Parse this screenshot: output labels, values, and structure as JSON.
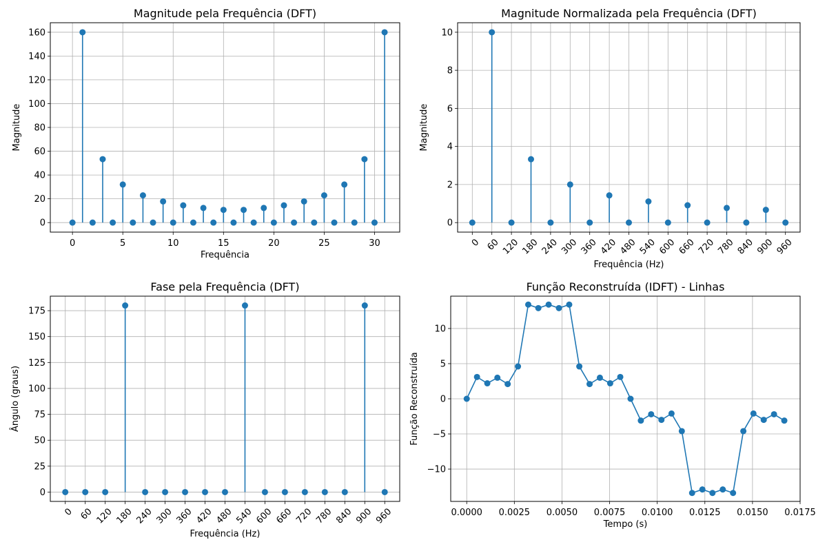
{
  "colors": {
    "series": "#1f77b4",
    "grid": "#b0b0b0",
    "axis": "#000000"
  },
  "chart_data": [
    {
      "type": "stem",
      "title": "Magnitude pela Frequência (DFT)",
      "xlabel": "Frequência",
      "ylabel": "Magnitude",
      "xlim": [
        -2.2,
        32.5
      ],
      "ylim": [
        -8,
        168
      ],
      "xticks": [
        0,
        5,
        10,
        15,
        20,
        25,
        30
      ],
      "xtick_labels": [
        "0",
        "5",
        "10",
        "15",
        "20",
        "25",
        "30"
      ],
      "yticks": [
        0,
        20,
        40,
        60,
        80,
        100,
        120,
        140,
        160
      ],
      "ytick_labels": [
        "0",
        "20",
        "40",
        "60",
        "80",
        "100",
        "120",
        "140",
        "160"
      ],
      "xtick_rotation": 0,
      "grid": true,
      "x": [
        0,
        1,
        2,
        3,
        4,
        5,
        6,
        7,
        8,
        9,
        10,
        11,
        12,
        13,
        14,
        15,
        16,
        17,
        18,
        19,
        20,
        21,
        22,
        23,
        24,
        25,
        26,
        27,
        28,
        29,
        30,
        31
      ],
      "values": [
        0,
        160,
        0,
        53.3,
        0,
        32,
        0,
        22.9,
        0,
        17.8,
        0,
        14.5,
        0,
        12.3,
        0,
        10.7,
        0,
        10.7,
        0,
        12.3,
        0,
        14.5,
        0,
        17.8,
        0,
        22.9,
        0,
        32,
        0,
        53.3,
        0,
        160
      ]
    },
    {
      "type": "stem",
      "title": "Magnitude Normalizada pela Frequência (DFT)",
      "xlabel": "Frequência (Hz)",
      "ylabel": "Magnitude",
      "xlim": [
        -45,
        1005
      ],
      "ylim": [
        -0.5,
        10.5
      ],
      "xticks": [
        0,
        60,
        120,
        180,
        240,
        300,
        360,
        420,
        480,
        540,
        600,
        660,
        720,
        780,
        840,
        900,
        960
      ],
      "xtick_labels": [
        "0",
        "60",
        "120",
        "180",
        "240",
        "300",
        "360",
        "420",
        "480",
        "540",
        "600",
        "660",
        "720",
        "780",
        "840",
        "900",
        "960"
      ],
      "yticks": [
        0,
        2,
        4,
        6,
        8,
        10
      ],
      "ytick_labels": [
        "0",
        "2",
        "4",
        "6",
        "8",
        "10"
      ],
      "xtick_rotation": 45,
      "grid": true,
      "x": [
        0,
        60,
        120,
        180,
        240,
        300,
        360,
        420,
        480,
        540,
        600,
        660,
        720,
        780,
        840,
        900,
        960
      ],
      "values": [
        0,
        10,
        0,
        3.33,
        0,
        2,
        0,
        1.43,
        0,
        1.11,
        0,
        0.91,
        0,
        0.77,
        0,
        0.67,
        0
      ]
    },
    {
      "type": "stem",
      "title": "Fase pela Frequência (DFT)",
      "xlabel": "Frequência (Hz)",
      "ylabel": "Ângulo (graus)",
      "xlim": [
        -45,
        1005
      ],
      "ylim": [
        -9,
        189
      ],
      "xticks": [
        0,
        60,
        120,
        180,
        240,
        300,
        360,
        420,
        480,
        540,
        600,
        660,
        720,
        780,
        840,
        900,
        960
      ],
      "xtick_labels": [
        "0",
        "60",
        "120",
        "180",
        "240",
        "300",
        "360",
        "420",
        "480",
        "540",
        "600",
        "660",
        "720",
        "780",
        "840",
        "900",
        "960"
      ],
      "yticks": [
        0,
        25,
        50,
        75,
        100,
        125,
        150,
        175
      ],
      "ytick_labels": [
        "0",
        "25",
        "50",
        "75",
        "100",
        "125",
        "150",
        "175"
      ],
      "xtick_rotation": 45,
      "grid": true,
      "x": [
        0,
        60,
        120,
        180,
        240,
        300,
        360,
        420,
        480,
        540,
        600,
        660,
        720,
        780,
        840,
        900,
        960
      ],
      "values": [
        0,
        0,
        0,
        180,
        0,
        0,
        0,
        0,
        0,
        180,
        0,
        0,
        0,
        0,
        0,
        180,
        0
      ]
    },
    {
      "type": "line",
      "title": "Função Reconstruída (IDFT) - Linhas",
      "xlabel": "Tempo (s)",
      "ylabel": "Função Reconstruída",
      "xlim": [
        -0.00084,
        0.0175
      ],
      "ylim": [
        -14.6,
        14.6
      ],
      "xticks": [
        0,
        0.0025,
        0.005,
        0.0075,
        0.01,
        0.0125,
        0.015,
        0.0175
      ],
      "xtick_labels": [
        "0.0000",
        "0.0025",
        "0.0050",
        "0.0075",
        "0.0100",
        "0.0125",
        "0.0150",
        "0.0175"
      ],
      "yticks": [
        -10,
        -5,
        0,
        5,
        10
      ],
      "ytick_labels": [
        "−10",
        "−5",
        "0",
        "5",
        "10"
      ],
      "xtick_rotation": 0,
      "grid": true,
      "x": [
        0,
        0.00054,
        0.00108,
        0.00161,
        0.00215,
        0.00269,
        0.00323,
        0.00376,
        0.0043,
        0.00484,
        0.00538,
        0.00591,
        0.00645,
        0.00699,
        0.00753,
        0.00806,
        0.0086,
        0.00914,
        0.00968,
        0.01022,
        0.01075,
        0.01129,
        0.01183,
        0.01237,
        0.0129,
        0.01344,
        0.01398,
        0.01452,
        0.01505,
        0.01559,
        0.01613,
        0.01667
      ],
      "values": [
        0,
        3.1,
        2.2,
        3.0,
        2.1,
        4.6,
        13.4,
        12.9,
        13.4,
        12.9,
        13.4,
        4.6,
        2.1,
        3.0,
        2.2,
        3.1,
        0,
        -3.1,
        -2.2,
        -3.0,
        -2.1,
        -4.6,
        -13.4,
        -12.9,
        -13.4,
        -12.9,
        -13.4,
        -4.6,
        -2.1,
        -3.0,
        -2.2,
        -3.1
      ]
    }
  ]
}
